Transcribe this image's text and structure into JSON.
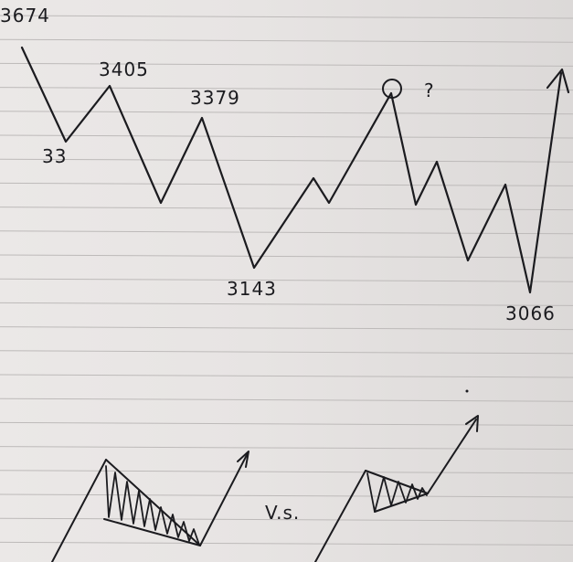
{
  "chart_data": {
    "type": "line",
    "labels": [
      {
        "text": "3674"
      },
      {
        "text": "33"
      },
      {
        "text": "3405"
      },
      {
        "text": "3379"
      },
      {
        "text": "3143"
      },
      {
        "text": "3066"
      }
    ],
    "question_mark": "?",
    "versus_label": "V.s.",
    "ink_color": "#1b1b1f",
    "paper_color": "#e6e3e2",
    "rule_color": "#bdbab9"
  }
}
